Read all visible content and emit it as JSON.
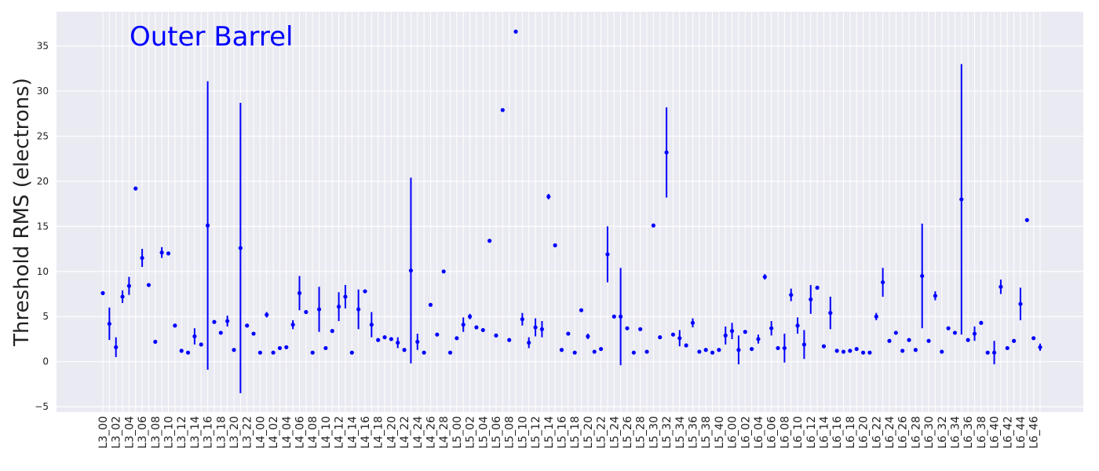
{
  "chart_data": {
    "type": "errorbar",
    "ylabel": "Threshold RMS (electrons)",
    "annotation": "Outer Barrel",
    "color": "#0000ff",
    "grid": true,
    "ylim": [
      -5.6,
      38.8
    ],
    "yticks": [
      {
        "value": -5,
        "label": "−5"
      },
      0,
      5,
      10,
      15,
      20,
      25,
      30,
      35
    ],
    "categories": [
      "L3_00",
      null,
      "L3_02",
      null,
      "L3_04",
      null,
      "L3_06",
      null,
      "L3_08",
      null,
      "L3_10",
      null,
      "L3_12",
      null,
      "L3_14",
      null,
      "L3_16",
      null,
      "L3_18",
      null,
      "L3_20",
      null,
      "L3_22",
      null,
      "L4_00",
      null,
      "L4_02",
      null,
      "L4_04",
      null,
      "L4_06",
      null,
      "L4_08",
      null,
      "L4_10",
      null,
      "L4_12",
      null,
      "L4_14",
      null,
      "L4_16",
      null,
      "L4_18",
      null,
      "L4_20",
      null,
      "L4_22",
      null,
      "L4_24",
      null,
      "L4_26",
      null,
      "L4_28",
      null,
      "L5_00",
      null,
      "L5_02",
      null,
      "L5_04",
      null,
      "L5_06",
      null,
      "L5_08",
      null,
      "L5_10",
      null,
      "L5_12",
      null,
      "L5_14",
      null,
      "L5_16",
      null,
      "L5_18",
      null,
      "L5_20",
      null,
      "L5_22",
      null,
      "L5_24",
      null,
      "L5_26",
      null,
      "L5_28",
      null,
      "L5_30",
      null,
      "L5_32",
      null,
      "L5_34",
      null,
      "L5_36",
      null,
      "L5_38",
      null,
      "L5_40",
      null,
      "L6_00",
      null,
      "L6_02",
      null,
      "L6_04",
      null,
      "L6_06",
      null,
      "L6_08",
      null,
      "L6_10",
      null,
      "L6_12",
      null,
      "L6_14",
      null,
      "L6_16",
      null,
      "L6_18",
      null,
      "L6_20",
      null,
      "L6_22",
      null,
      "L6_24",
      null,
      "L6_26",
      null,
      "L6_28",
      null,
      "L6_30",
      null,
      "L6_32",
      null,
      "L6_34",
      null,
      "L6_36",
      null,
      "L6_38",
      null,
      "L6_40",
      null,
      "L6_42",
      null,
      "L6_44",
      null,
      "L6_46",
      null
    ],
    "values": [
      7.6,
      4.2,
      1.6,
      7.2,
      8.4,
      19.2,
      11.5,
      8.5,
      2.2,
      12.1,
      12.0,
      4.0,
      1.2,
      1.0,
      2.8,
      1.9,
      15.1,
      4.4,
      3.2,
      4.5,
      1.3,
      12.6,
      4.0,
      3.1,
      1.0,
      5.2,
      1.0,
      1.5,
      1.6,
      4.1,
      7.6,
      5.5,
      1.0,
      5.8,
      1.5,
      3.4,
      6.1,
      7.2,
      1.0,
      5.8,
      7.8,
      4.1,
      2.4,
      2.7,
      2.5,
      2.1,
      1.3,
      10.1,
      2.2,
      1.0,
      6.3,
      3.0,
      10.0,
      1.0,
      2.6,
      4.1,
      5.0,
      3.8,
      3.5,
      13.4,
      2.9,
      27.9,
      2.4,
      36.6,
      4.7,
      2.1,
      3.8,
      3.6,
      18.3,
      12.9,
      1.3,
      3.1,
      1.0,
      5.7,
      2.8,
      1.1,
      1.4,
      11.9,
      5.0,
      5.0,
      3.7,
      1.0,
      3.6,
      1.1,
      15.1,
      2.7,
      23.2,
      3.0,
      2.6,
      1.8,
      4.3,
      1.1,
      1.3,
      1.0,
      1.3,
      2.9,
      3.4,
      1.3,
      3.3,
      1.4,
      2.5,
      9.4,
      3.7,
      1.5,
      1.5,
      7.4,
      4.0,
      1.9,
      6.9,
      8.2,
      1.7,
      5.4,
      1.2,
      1.1,
      1.2,
      1.4,
      1.0,
      1.0,
      5.0,
      8.8,
      2.3,
      3.2,
      1.2,
      2.4,
      1.3,
      9.5,
      2.3,
      7.3,
      1.1,
      3.7,
      3.2,
      18.0,
      2.4,
      3.1,
      4.3,
      1.0,
      1.0,
      8.3,
      1.5,
      2.3,
      6.4,
      15.7,
      2.6,
      1.6
    ],
    "errors": [
      0,
      1.8,
      1.1,
      0.7,
      1.0,
      0,
      1.0,
      0,
      0,
      0.6,
      0.2,
      0,
      0,
      0,
      0.9,
      0,
      16.0,
      0,
      0,
      0.6,
      0,
      16.1,
      0,
      0,
      0,
      0.3,
      0,
      0,
      0,
      0.5,
      1.9,
      0,
      0,
      2.5,
      0,
      0,
      1.6,
      1.3,
      0,
      2.2,
      0,
      1.4,
      0,
      0,
      0,
      0.6,
      0,
      10.3,
      0.9,
      0,
      0.2,
      0,
      0,
      0,
      0,
      0.8,
      0.3,
      0,
      0,
      0,
      0,
      0,
      0,
      0,
      0.7,
      0.6,
      1.0,
      0.9,
      0.3,
      0,
      0,
      0,
      0,
      0,
      0.3,
      0,
      0,
      3.1,
      0,
      5.4,
      0,
      0,
      0,
      0,
      0.2,
      0,
      5.0,
      0,
      0.9,
      0,
      0.5,
      0,
      0,
      0,
      0,
      1.0,
      0.9,
      1.6,
      0,
      0,
      0.5,
      0.3,
      0.8,
      0,
      1.6,
      0.7,
      0.9,
      1.6,
      1.6,
      0,
      0,
      1.8,
      0,
      0,
      0,
      0,
      0,
      0,
      0.4,
      1.6,
      0,
      0,
      0,
      0,
      0,
      5.8,
      0,
      0.5,
      0,
      0,
      0,
      15.0,
      0,
      0.8,
      0,
      0,
      1.3,
      0.8,
      0,
      0,
      1.8,
      0,
      0,
      0.4
    ]
  }
}
